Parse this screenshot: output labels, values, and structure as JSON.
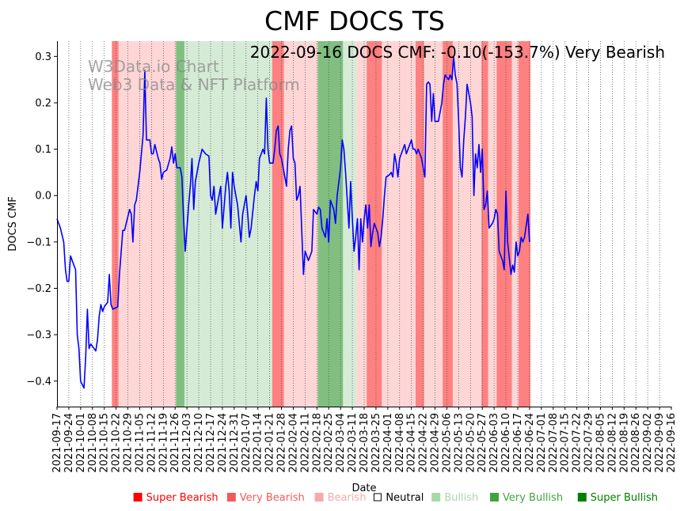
{
  "chart_data": {
    "type": "line",
    "title": "CMF DOCS TS",
    "annotation": "2022-09-16 DOCS CMF: -0.10(-153.7%) Very Bearish",
    "watermark": [
      "W3Data.io Chart",
      "Web3 Data & NFT Platform"
    ],
    "xlabel": "Date",
    "ylabel": "DOCS CMF",
    "ylim": [
      -0.455,
      0.333
    ],
    "yticks": [
      0.3,
      0.2,
      0.1,
      0.0,
      -0.1,
      -0.2,
      -0.3,
      -0.4
    ],
    "ytick_labels": [
      "0.3",
      "0.2",
      "0.1",
      "0.0",
      "−0.1",
      "−0.2",
      "−0.3",
      "−0.4"
    ],
    "xlim": [
      0,
      364
    ],
    "xtick_labels": [
      "2021-09-17",
      "2021-09-24",
      "2021-10-01",
      "2021-10-08",
      "2021-10-15",
      "2021-10-22",
      "2021-10-29",
      "2021-11-05",
      "2021-11-12",
      "2021-11-19",
      "2021-11-26",
      "2021-12-03",
      "2021-12-10",
      "2021-12-17",
      "2021-12-24",
      "2021-12-31",
      "2022-01-07",
      "2022-01-14",
      "2022-01-21",
      "2022-01-28",
      "2022-02-04",
      "2022-02-11",
      "2022-02-18",
      "2022-02-25",
      "2022-03-04",
      "2022-03-11",
      "2022-03-18",
      "2022-03-25",
      "2022-04-01",
      "2022-04-08",
      "2022-04-15",
      "2022-04-22",
      "2022-04-29",
      "2022-05-06",
      "2022-05-13",
      "2022-05-20",
      "2022-05-27",
      "2022-06-03",
      "2022-06-10",
      "2022-06-17",
      "2022-06-24",
      "2022-07-01",
      "2022-07-08",
      "2022-07-15",
      "2022-07-22",
      "2022-07-29",
      "2022-08-05",
      "2022-08-12",
      "2022-08-19",
      "2022-08-26",
      "2022-09-02",
      "2022-09-09",
      "2022-09-16"
    ],
    "series": [
      {
        "name": "DOCS CMF",
        "color": "#0000ff",
        "points": [
          [
            0,
            -0.05
          ],
          [
            2,
            -0.07
          ],
          [
            4,
            -0.1
          ],
          [
            5,
            -0.16
          ],
          [
            6,
            -0.185
          ],
          [
            7,
            -0.185
          ],
          [
            8,
            -0.13
          ],
          [
            10,
            -0.15
          ],
          [
            11,
            -0.16
          ],
          [
            12,
            -0.3
          ],
          [
            13,
            -0.33
          ],
          [
            14,
            -0.4
          ],
          [
            16,
            -0.415
          ],
          [
            17,
            -0.35
          ],
          [
            18,
            -0.245
          ],
          [
            19,
            -0.33
          ],
          [
            20,
            -0.32
          ],
          [
            22,
            -0.33
          ],
          [
            23,
            -0.335
          ],
          [
            24,
            -0.31
          ],
          [
            25,
            -0.26
          ],
          [
            26,
            -0.235
          ],
          [
            27,
            -0.25
          ],
          [
            28,
            -0.24
          ],
          [
            30,
            -0.23
          ],
          [
            31,
            -0.17
          ],
          [
            32,
            -0.235
          ],
          [
            33,
            -0.245
          ],
          [
            36,
            -0.24
          ],
          [
            37,
            -0.17
          ],
          [
            39,
            -0.075
          ],
          [
            40,
            -0.075
          ],
          [
            41,
            -0.06
          ],
          [
            43,
            -0.03
          ],
          [
            44,
            -0.04
          ],
          [
            45,
            -0.1
          ],
          [
            46,
            -0.02
          ],
          [
            47,
            -0.01
          ],
          [
            49,
            0.05
          ],
          [
            50,
            0.09
          ],
          [
            51,
            0.13
          ],
          [
            52,
            0.27
          ],
          [
            53,
            0.12
          ],
          [
            55,
            0.12
          ],
          [
            56,
            0.09
          ],
          [
            57,
            0.09
          ],
          [
            58,
            0.11
          ],
          [
            60,
            0.08
          ],
          [
            61,
            0.07
          ],
          [
            62,
            0.035
          ],
          [
            63,
            0.05
          ],
          [
            65,
            0.055
          ],
          [
            67,
            0.08
          ],
          [
            68,
            0.105
          ],
          [
            69,
            0.07
          ],
          [
            70,
            0.09
          ],
          [
            71,
            0.06
          ],
          [
            73,
            0.06
          ],
          [
            74,
            0.04
          ],
          [
            75,
            -0.05
          ],
          [
            76,
            -0.12
          ],
          [
            77,
            -0.07
          ],
          [
            78,
            -0.02
          ],
          [
            79,
            0.02
          ],
          [
            80,
            0.08
          ],
          [
            81,
            -0.03
          ],
          [
            82,
            0.03
          ],
          [
            84,
            0.07
          ],
          [
            86,
            0.1
          ],
          [
            88,
            0.09
          ],
          [
            90,
            0.085
          ],
          [
            91,
            0.0
          ],
          [
            92,
            -0.01
          ],
          [
            93,
            0.02
          ],
          [
            94,
            -0.04
          ],
          [
            95,
            -0.02
          ],
          [
            97,
            0.02
          ],
          [
            98,
            -0.07
          ],
          [
            100,
            0.02
          ],
          [
            101,
            0.05
          ],
          [
            102,
            0.01
          ],
          [
            103,
            -0.07
          ],
          [
            104,
            0.05
          ],
          [
            105,
            0.02
          ],
          [
            107,
            -0.02
          ],
          [
            109,
            -0.1
          ],
          [
            110,
            -0.04
          ],
          [
            112,
            0.0
          ],
          [
            113,
            -0.04
          ],
          [
            114,
            -0.09
          ],
          [
            115,
            -0.07
          ],
          [
            117,
            0.0
          ],
          [
            118,
            0.03
          ],
          [
            119,
            0.01
          ],
          [
            120,
            0.08
          ],
          [
            121,
            0.09
          ],
          [
            122,
            0.1
          ],
          [
            123,
            0.09
          ],
          [
            124,
            0.21
          ],
          [
            125,
            0.1
          ],
          [
            126,
            0.07
          ],
          [
            128,
            0.07
          ],
          [
            129,
            0.1
          ],
          [
            130,
            0.14
          ],
          [
            131,
            0.15
          ],
          [
            132,
            0.09
          ],
          [
            133,
            0.08
          ],
          [
            134,
            0.06
          ],
          [
            135,
            0.04
          ],
          [
            136,
            0.02
          ],
          [
            137,
            0.1
          ],
          [
            138,
            0.14
          ],
          [
            139,
            0.15
          ],
          [
            140,
            0.08
          ],
          [
            141,
            0.07
          ],
          [
            142,
            -0.01
          ],
          [
            143,
            0.0
          ],
          [
            144,
            0.02
          ],
          [
            146,
            -0.17
          ],
          [
            147,
            -0.12
          ],
          [
            149,
            -0.14
          ],
          [
            150,
            -0.13
          ],
          [
            151,
            -0.12
          ],
          [
            152,
            -0.03
          ],
          [
            154,
            -0.04
          ],
          [
            155,
            -0.025
          ],
          [
            156,
            -0.03
          ],
          [
            157,
            -0.07
          ],
          [
            159,
            -0.09
          ],
          [
            160,
            -0.05
          ],
          [
            161,
            -0.1
          ],
          [
            162,
            -0.01
          ],
          [
            164,
            -0.03
          ],
          [
            165,
            -0.06
          ],
          [
            166,
            0.0
          ],
          [
            168,
            0.06
          ],
          [
            169,
            0.12
          ],
          [
            170,
            0.1
          ],
          [
            171,
            0.05
          ],
          [
            173,
            -0.07
          ],
          [
            174,
            0.03
          ],
          [
            175,
            -0.05
          ],
          [
            176,
            -0.12
          ],
          [
            177,
            -0.09
          ],
          [
            178,
            -0.05
          ],
          [
            179,
            -0.16
          ],
          [
            180,
            -0.05
          ],
          [
            181,
            -0.1
          ],
          [
            182,
            -0.05
          ],
          [
            183,
            -0.02
          ],
          [
            184,
            -0.07
          ],
          [
            185,
            -0.02
          ],
          [
            186,
            -0.11
          ],
          [
            187,
            -0.08
          ],
          [
            188,
            -0.06
          ],
          [
            190,
            -0.08
          ],
          [
            191,
            -0.11
          ],
          [
            192,
            -0.09
          ],
          [
            193,
            -0.05
          ],
          [
            194,
            0.0
          ],
          [
            195,
            0.04
          ],
          [
            197,
            0.045
          ],
          [
            198,
            0.05
          ],
          [
            199,
            0.04
          ],
          [
            200,
            0.09
          ],
          [
            201,
            0.07
          ],
          [
            202,
            0.04
          ],
          [
            203,
            0.08
          ],
          [
            204,
            0.09
          ],
          [
            205,
            0.1
          ],
          [
            206,
            0.11
          ],
          [
            207,
            0.09
          ],
          [
            208,
            0.1
          ],
          [
            209,
            0.11
          ],
          [
            210,
            0.12
          ],
          [
            211,
            0.1
          ],
          [
            212,
            0.1
          ],
          [
            213,
            0.09
          ],
          [
            214,
            0.1
          ],
          [
            216,
            0.08
          ],
          [
            217,
            0.06
          ],
          [
            218,
            0.04
          ],
          [
            219,
            0.24
          ],
          [
            220,
            0.245
          ],
          [
            221,
            0.24
          ],
          [
            222,
            0.16
          ],
          [
            223,
            0.22
          ],
          [
            224,
            0.16
          ],
          [
            226,
            0.16
          ],
          [
            227,
            0.18
          ],
          [
            228,
            0.2
          ],
          [
            229,
            0.24
          ],
          [
            230,
            0.26
          ],
          [
            232,
            0.25
          ],
          [
            233,
            0.26
          ],
          [
            234,
            0.25
          ],
          [
            235,
            0.3
          ],
          [
            236,
            0.26
          ],
          [
            237,
            0.24
          ],
          [
            238,
            0.16
          ],
          [
            239,
            0.06
          ],
          [
            240,
            0.04
          ],
          [
            241,
            0.12
          ],
          [
            242,
            0.17
          ],
          [
            243,
            0.24
          ],
          [
            244,
            0.22
          ],
          [
            245,
            0.2
          ],
          [
            246,
            0.17
          ],
          [
            247,
            0.0
          ],
          [
            248,
            0.09
          ],
          [
            249,
            0.06
          ],
          [
            250,
            0.11
          ],
          [
            251,
            0.05
          ],
          [
            252,
            0.1
          ],
          [
            253,
            -0.03
          ],
          [
            254,
            -0.02
          ],
          [
            255,
            0.01
          ],
          [
            256,
            -0.07
          ],
          [
            258,
            -0.06
          ],
          [
            259,
            -0.05
          ],
          [
            260,
            -0.03
          ],
          [
            261,
            -0.04
          ],
          [
            262,
            -0.12
          ],
          [
            263,
            -0.13
          ],
          [
            264,
            -0.14
          ],
          [
            265,
            -0.16
          ],
          [
            266,
            0.01
          ],
          [
            267,
            -0.1
          ],
          [
            269,
            -0.17
          ],
          [
            270,
            -0.15
          ],
          [
            271,
            -0.165
          ],
          [
            272,
            -0.1
          ],
          [
            273,
            -0.13
          ],
          [
            274,
            -0.12
          ],
          [
            275,
            -0.09
          ],
          [
            276,
            -0.1
          ],
          [
            277,
            -0.09
          ],
          [
            278,
            -0.065
          ],
          [
            279,
            -0.04
          ],
          [
            280,
            -0.1
          ]
        ]
      }
    ],
    "bands": [
      {
        "x0": 32.5,
        "x1": 36.5,
        "level": "very_bearish"
      },
      {
        "x0": 36.5,
        "x1": 70.5,
        "level": "bearish"
      },
      {
        "x0": 70.5,
        "x1": 75.5,
        "level": "very_bullish"
      },
      {
        "x0": 75.5,
        "x1": 127.5,
        "level": "bullish"
      },
      {
        "x0": 127.5,
        "x1": 134.5,
        "level": "very_bearish"
      },
      {
        "x0": 134.5,
        "x1": 154.5,
        "level": "bearish"
      },
      {
        "x0": 154.5,
        "x1": 169.5,
        "level": "very_bullish"
      },
      {
        "x0": 169.5,
        "x1": 177.5,
        "level": "bullish"
      },
      {
        "x0": 177.5,
        "x1": 183.5,
        "level": "bearish"
      },
      {
        "x0": 183.5,
        "x1": 192.5,
        "level": "very_bearish"
      },
      {
        "x0": 192.5,
        "x1": 212.5,
        "level": "bearish"
      },
      {
        "x0": 212.5,
        "x1": 217.5,
        "level": "very_bearish"
      },
      {
        "x0": 217.5,
        "x1": 228.5,
        "level": "bearish"
      },
      {
        "x0": 228.5,
        "x1": 234.5,
        "level": "very_bearish"
      },
      {
        "x0": 234.5,
        "x1": 251.5,
        "level": "bearish"
      },
      {
        "x0": 251.5,
        "x1": 255.5,
        "level": "very_bearish"
      },
      {
        "x0": 255.5,
        "x1": 260.5,
        "level": "bearish"
      },
      {
        "x0": 260.5,
        "x1": 269.5,
        "level": "very_bearish"
      },
      {
        "x0": 269.5,
        "x1": 273.5,
        "level": "bearish"
      },
      {
        "x0": 273.5,
        "x1": 280.5,
        "level": "very_bearish"
      }
    ],
    "bands_unit_note": "band positions in chart data units (days since 2021-09-17, scaled to axis 0-364)",
    "legend": {
      "placement": "bottom-right",
      "items": [
        {
          "label": "Super Bearish",
          "color": "#ff0000"
        },
        {
          "label": "Very Bearish",
          "color": "#f05a5a"
        },
        {
          "label": "Bearish",
          "color": "#f6aaaa"
        },
        {
          "label": "Neutral",
          "color": "#000000"
        },
        {
          "label": "Bullish",
          "color": "#a7d8a7"
        },
        {
          "label": "Very Bullish",
          "color": "#3fa43f"
        },
        {
          "label": "Super Bullish",
          "color": "#008000"
        }
      ]
    },
    "band_colors": {
      "very_bearish": "#ff8080",
      "bearish": "#ffd6d6",
      "very_bullish": "#80bf80",
      "bullish": "#d6ebd6"
    }
  }
}
